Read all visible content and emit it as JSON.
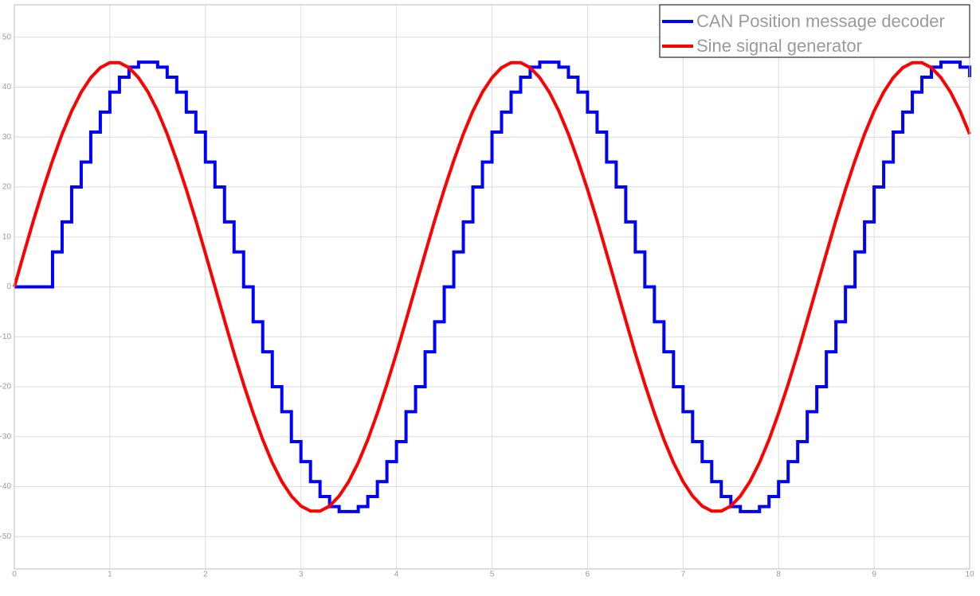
{
  "chart_data": {
    "type": "line",
    "x": [
      0,
      0.1,
      0.2,
      0.3,
      0.4,
      0.5,
      0.6,
      0.7,
      0.8,
      0.9,
      1,
      1.1,
      1.2,
      1.3,
      1.4,
      1.5,
      1.6,
      1.7,
      1.8,
      1.9,
      2,
      2.1,
      2.2,
      2.3,
      2.4,
      2.5,
      2.6,
      2.7,
      2.8,
      2.9,
      3,
      3.1,
      3.2,
      3.3,
      3.4,
      3.5,
      3.6,
      3.7,
      3.8,
      3.9,
      4,
      4.1,
      4.2,
      4.3,
      4.4,
      4.5,
      4.6,
      4.7,
      4.8,
      4.9,
      5,
      5.1,
      5.2,
      5.3,
      5.4,
      5.5,
      5.6,
      5.7,
      5.8,
      5.9,
      6,
      6.1,
      6.2,
      6.3,
      6.4,
      6.5,
      6.6,
      6.7,
      6.8,
      6.9,
      7,
      7.1,
      7.2,
      7.3,
      7.4,
      7.5,
      7.6,
      7.7,
      7.8,
      7.9,
      8,
      8.1,
      8.2,
      8.3,
      8.4,
      8.5,
      8.6,
      8.7,
      8.8,
      8.9,
      9,
      9.1,
      9.2,
      9.3,
      9.4,
      9.5,
      9.6,
      9.7,
      9.8,
      9.9,
      10
    ],
    "series": [
      {
        "name": "CAN Position message decoder",
        "color": "#0000ff",
        "drawstyle": "steps-post",
        "values": [
          0,
          0,
          0,
          0,
          7,
          13,
          20,
          25,
          31,
          35,
          39,
          42,
          44,
          45,
          45,
          44,
          42,
          39,
          35,
          31,
          25,
          20,
          13,
          7,
          0,
          -7,
          -13,
          -20,
          -25,
          -31,
          -35,
          -39,
          -42,
          -44,
          -45,
          -45,
          -44,
          -42,
          -39,
          -35,
          -31,
          -25,
          -20,
          -13,
          -7,
          0,
          7,
          13,
          20,
          25,
          31,
          35,
          39,
          42,
          44,
          45,
          45,
          44,
          42,
          39,
          35,
          31,
          25,
          20,
          13,
          7,
          0,
          -7,
          -13,
          -20,
          -25,
          -31,
          -35,
          -39,
          -42,
          -44,
          -45,
          -45,
          -44,
          -42,
          -39,
          -35,
          -31,
          -25,
          -20,
          -13,
          -7,
          0,
          7,
          13,
          20,
          25,
          31,
          35,
          39,
          42,
          44,
          45,
          45,
          44,
          42
        ]
      },
      {
        "name": "Sine signal generator",
        "color": "#ff0000",
        "drawstyle": "default",
        "values": [
          0,
          6.7,
          13.3,
          19.5,
          25.3,
          30.6,
          35.2,
          39,
          41.9,
          43.9,
          44.9,
          44.9,
          43.9,
          41.9,
          39,
          35.2,
          30.6,
          25.3,
          19.5,
          13.3,
          6.7,
          0,
          -6.7,
          -13.3,
          -19.5,
          -25.3,
          -30.6,
          -35.2,
          -39,
          -41.9,
          -43.9,
          -44.9,
          -44.9,
          -43.9,
          -41.9,
          -39,
          -35.2,
          -30.6,
          -25.3,
          -19.5,
          -13.3,
          -6.7,
          0,
          6.7,
          13.3,
          19.5,
          25.3,
          30.6,
          35.2,
          39,
          41.9,
          43.9,
          44.9,
          44.9,
          43.9,
          41.9,
          39,
          35.2,
          30.6,
          25.3,
          19.5,
          13.3,
          6.7,
          0,
          -6.7,
          -13.3,
          -19.5,
          -25.3,
          -30.6,
          -35.2,
          -39,
          -41.9,
          -43.9,
          -44.9,
          -44.9,
          -43.9,
          -41.9,
          -39,
          -35.2,
          -30.6,
          -25.3,
          -19.5,
          -13.3,
          -6.7,
          0,
          6.7,
          13.3,
          19.5,
          25.3,
          30.6,
          35.2,
          39,
          41.9,
          43.9,
          44.9,
          44.9,
          43.9,
          41.9,
          39,
          35.2,
          30.6
        ]
      }
    ],
    "xlim": [
      0,
      10
    ],
    "xticks": [
      0,
      1,
      2,
      3,
      4,
      5,
      6,
      7,
      8,
      9,
      10
    ],
    "ylim": [
      -56.5,
      56.5
    ],
    "yticks": [
      -50,
      -40,
      -30,
      -20,
      -10,
      0,
      10,
      20,
      30,
      40,
      50
    ],
    "grid": true,
    "legend": "upper right"
  }
}
